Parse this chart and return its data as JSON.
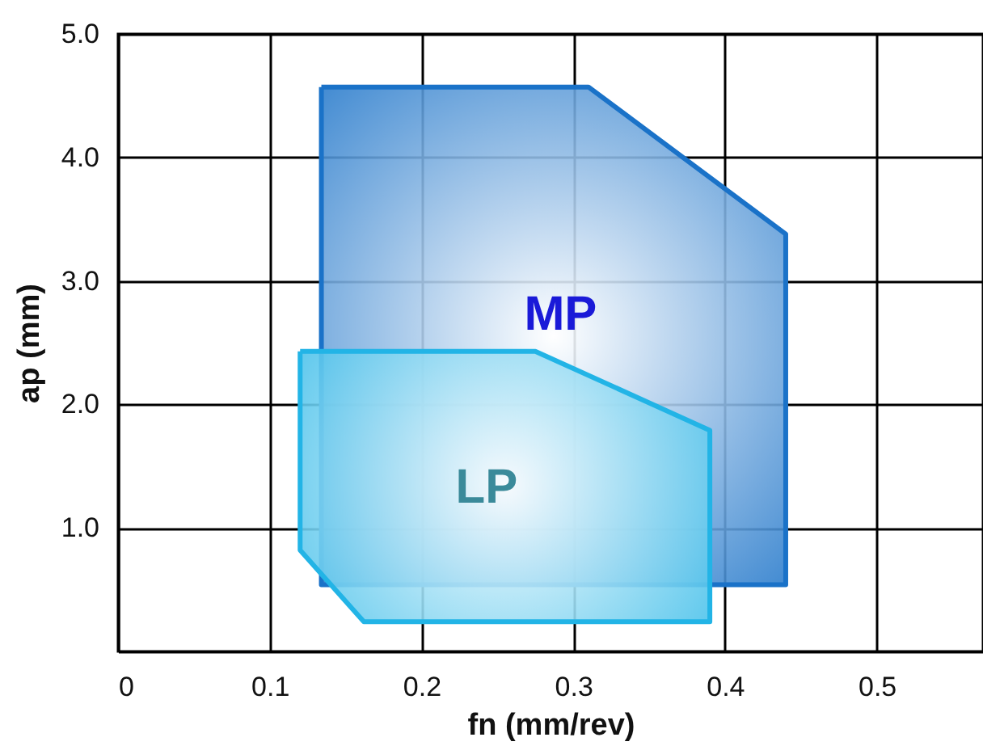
{
  "chart_data": {
    "type": "area",
    "xlabel": "fn (mm/rev)",
    "ylabel": "ap (mm)",
    "series": [
      {
        "color": "#1a72c8",
        "x": [
          0.134,
          0.31,
          0.44,
          0.44,
          0.134
        ],
        "values": [
          4.57,
          4.57,
          3.38,
          0.54,
          0.54
        ]
      },
      {
        "color": "#22b4e6",
        "x": [
          0.12,
          0.275,
          0.39,
          0.39,
          0.162,
          0.12
        ],
        "values": [
          2.43,
          2.43,
          1.79,
          0.24,
          0.24,
          0.82
        ]
      }
    ],
    "annotations": [
      "MP",
      "LP"
    ],
    "xlim": [
      0,
      0.57
    ],
    "ylim": [
      0,
      5
    ],
    "xticks": [
      0,
      0.1,
      0.2,
      0.3,
      0.4,
      0.5
    ],
    "yticks": [
      {
        "value": 1,
        "label": "1.0"
      },
      {
        "value": 2,
        "label": "2.0"
      },
      {
        "value": 3,
        "label": "3.0"
      },
      {
        "value": 4,
        "label": "4.0"
      },
      {
        "value": 5,
        "label": "5.0"
      }
    ],
    "grid": true
  }
}
